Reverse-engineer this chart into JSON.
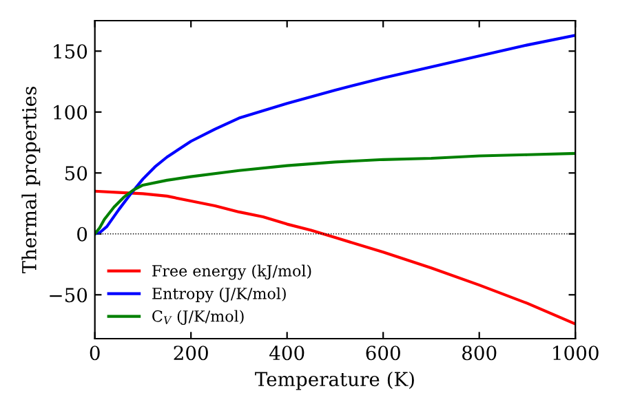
{
  "chart_data": {
    "type": "line",
    "xlabel": "Temperature (K)",
    "ylabel": "Thermal properties",
    "xlim": [
      0,
      1000
    ],
    "ylim": [
      -86,
      175
    ],
    "xticks": [
      0,
      200,
      400,
      600,
      800,
      1000
    ],
    "yticks": [
      {
        "value": -50,
        "label": "−50"
      },
      0,
      50,
      100,
      150
    ],
    "legend": "bottom left",
    "grid": false,
    "marker": "none",
    "line_style": "solid",
    "ref_lines": [
      {
        "axis": "y",
        "value": 0,
        "color": "#000000",
        "line_style": "dotted"
      }
    ],
    "series": [
      {
        "name": "Free energy (kJ/mol)",
        "color": "#ff0000",
        "x": [
          0,
          50,
          100,
          150,
          200,
          250,
          300,
          350,
          400,
          450,
          500,
          600,
          700,
          800,
          900,
          1000
        ],
        "values": [
          35,
          34,
          33,
          31,
          27,
          23,
          18,
          14,
          8,
          3,
          -3,
          -15,
          -28,
          -42,
          -57,
          -74
        ]
      },
      {
        "name": "Entropy (J/K/mol)",
        "color": "#0000ff",
        "x": [
          0,
          10,
          25,
          50,
          75,
          100,
          125,
          150,
          200,
          250,
          300,
          400,
          500,
          600,
          700,
          800,
          900,
          1000
        ],
        "values": [
          0,
          1,
          6,
          20,
          33,
          45,
          55,
          63,
          76,
          86,
          95,
          107,
          118,
          128,
          137,
          146,
          155,
          163
        ]
      },
      {
        "name": "C$_{V}$ (J/K/mol)",
        "color": "#008000",
        "x": [
          0,
          10,
          20,
          40,
          60,
          80,
          100,
          150,
          200,
          300,
          400,
          500,
          600,
          700,
          800,
          900,
          1000
        ],
        "values": [
          0,
          5,
          12,
          22,
          30,
          36,
          40,
          44,
          47,
          52,
          56,
          59,
          61,
          62,
          64,
          65,
          66
        ]
      }
    ]
  }
}
